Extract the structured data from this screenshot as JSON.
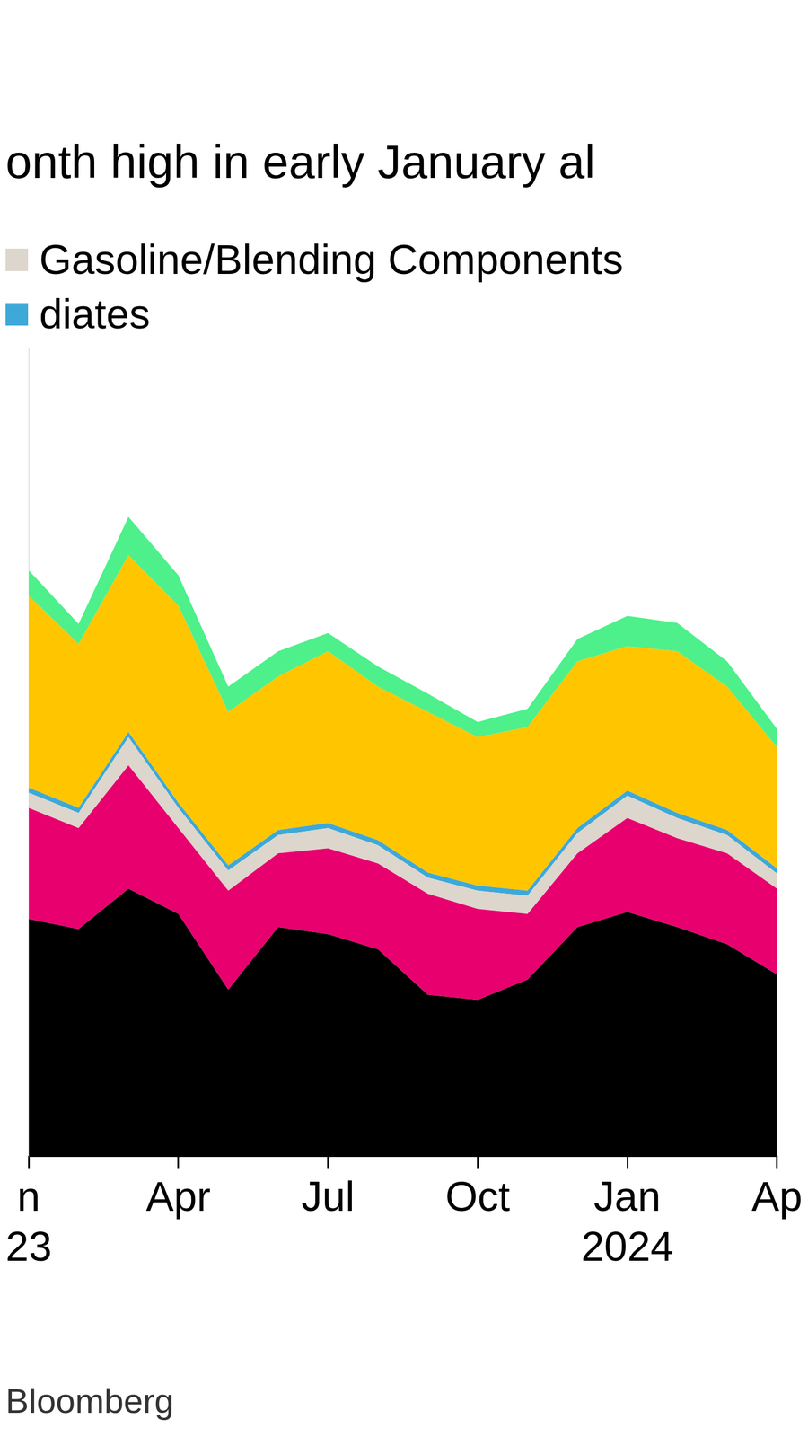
{
  "chart_data": {
    "type": "area",
    "title": "onth high in early January al",
    "source": "Bloomberg",
    "categories": [
      "n",
      null,
      null,
      "Apr",
      null,
      null,
      "Jul",
      null,
      null,
      "Oct",
      null,
      null,
      "Jan",
      null,
      null,
      "Ap"
    ],
    "year_labels": [
      "23",
      null,
      null,
      null,
      null,
      null,
      null,
      null,
      null,
      null,
      null,
      null,
      "2024",
      null,
      null,
      null
    ],
    "series": [
      {
        "color": "#000000",
        "values": [
          2.35,
          2.25,
          2.65,
          2.4,
          1.65,
          2.27,
          2.2,
          2.05,
          1.6,
          1.55,
          1.75,
          2.27,
          2.42,
          2.27,
          2.1,
          1.8
        ]
      },
      {
        "color": "#e8006f",
        "values": [
          1.1,
          1.0,
          1.22,
          0.85,
          0.98,
          0.73,
          0.85,
          0.85,
          1.0,
          0.9,
          0.65,
          0.73,
          0.93,
          0.88,
          0.9,
          0.85
        ]
      },
      {
        "name": "Gasoline/Blending Components",
        "color": "#ddd6cc",
        "values": [
          0.15,
          0.15,
          0.28,
          0.2,
          0.2,
          0.18,
          0.2,
          0.18,
          0.16,
          0.18,
          0.18,
          0.2,
          0.22,
          0.2,
          0.18,
          0.15
        ]
      },
      {
        "name": "diates",
        "color": "#3ea8d8",
        "values": [
          0.05,
          0.05,
          0.05,
          0.05,
          0.05,
          0.05,
          0.05,
          0.05,
          0.05,
          0.05,
          0.05,
          0.05,
          0.05,
          0.05,
          0.05,
          0.05
        ]
      },
      {
        "color": "#ffc600",
        "values": [
          1.9,
          1.62,
          1.75,
          1.95,
          1.52,
          1.52,
          1.7,
          1.52,
          1.59,
          1.47,
          1.62,
          1.65,
          1.43,
          1.6,
          1.42,
          1.2
        ]
      },
      {
        "color": "#4df08b",
        "values": [
          0.25,
          0.2,
          0.38,
          0.3,
          0.25,
          0.25,
          0.18,
          0.2,
          0.18,
          0.15,
          0.18,
          0.22,
          0.3,
          0.28,
          0.25,
          0.18
        ]
      }
    ],
    "ylim": [
      0,
      8
    ],
    "stacked": true,
    "grid": false,
    "tick_labels": "x"
  }
}
